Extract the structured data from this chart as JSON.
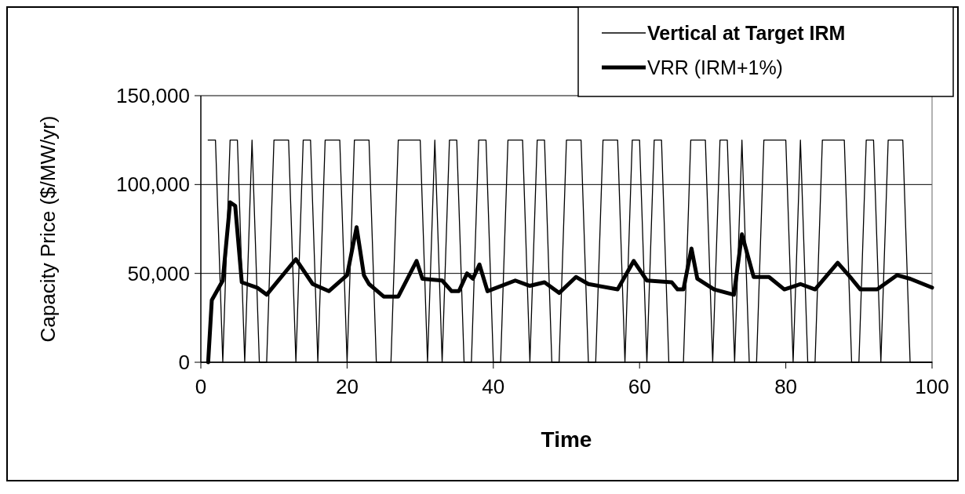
{
  "chart_data": {
    "type": "line",
    "xlabel": "Time",
    "ylabel": "Capacity Price ($/MW/yr)",
    "xlim": [
      0,
      100
    ],
    "xticks": [
      0,
      20,
      40,
      60,
      80,
      100
    ],
    "ylim": [
      0,
      150000
    ],
    "yticks": [
      0,
      {
        "value": 50000,
        "label": "50,000"
      },
      {
        "value": 100000,
        "label": "100,000"
      },
      {
        "value": 150000,
        "label": "150,000"
      }
    ],
    "grid": "y",
    "legend": "top right",
    "marker": "none",
    "line_style": "solid",
    "series": [
      {
        "name": "Vertical at Target IRM",
        "color": "#000000",
        "x": [
          1,
          2,
          3,
          4,
          5,
          6,
          7,
          8,
          9,
          10,
          11,
          12,
          13,
          14,
          15,
          16,
          17,
          18,
          19,
          20,
          21,
          22,
          23,
          24,
          25,
          26,
          27,
          28,
          29,
          30,
          31,
          32,
          33,
          34,
          35,
          36,
          37,
          38,
          39,
          40,
          41,
          42,
          43,
          44,
          45,
          46,
          47,
          48,
          49,
          50,
          51,
          52,
          53,
          54,
          55,
          56,
          57,
          58,
          59,
          60,
          61,
          62,
          63,
          64,
          65,
          66,
          67,
          68,
          69,
          70,
          71,
          72,
          73,
          74,
          75,
          76,
          77,
          78,
          79,
          80,
          81,
          82,
          83,
          84,
          85,
          86,
          87,
          88,
          89,
          90,
          91,
          92,
          93,
          94,
          95,
          96,
          97,
          98,
          99,
          100
        ],
        "values": [
          125000,
          125000,
          0,
          125000,
          125000,
          0,
          125000,
          0,
          0,
          125000,
          125000,
          125000,
          0,
          125000,
          125000,
          0,
          125000,
          125000,
          125000,
          0,
          125000,
          125000,
          125000,
          0,
          0,
          0,
          125000,
          125000,
          125000,
          125000,
          0,
          125000,
          0,
          125000,
          125000,
          0,
          0,
          125000,
          125000,
          0,
          0,
          125000,
          125000,
          125000,
          0,
          125000,
          125000,
          0,
          0,
          125000,
          125000,
          125000,
          0,
          0,
          125000,
          125000,
          125000,
          0,
          125000,
          125000,
          0,
          125000,
          125000,
          0,
          0,
          0,
          125000,
          125000,
          125000,
          0,
          125000,
          125000,
          0,
          125000,
          0,
          0,
          125000,
          125000,
          125000,
          125000,
          0,
          125000,
          0,
          0,
          125000,
          125000,
          125000,
          125000,
          0,
          0,
          125000,
          125000,
          0,
          125000,
          125000,
          125000,
          0,
          0,
          0,
          0
        ]
      },
      {
        "name": "VRR (IRM+1%)",
        "color": "#000000",
        "x": [
          1,
          1.5,
          3,
          4,
          4.7,
          5.6,
          7.7,
          9,
          13,
          15.3,
          17.5,
          20,
          21.3,
          22.3,
          23,
          25,
          27,
          29.5,
          30.3,
          33,
          34.3,
          35.3,
          36.4,
          37.2,
          38.1,
          39.2,
          43,
          45,
          47,
          49,
          51.3,
          53,
          57,
          59.2,
          61,
          64.4,
          65.2,
          66,
          67.1,
          67.9,
          70.2,
          72.9,
          74,
          75.6,
          77.7,
          79.8,
          82,
          84,
          87.1,
          89,
          90.2,
          92.5,
          95.2,
          97,
          100
        ],
        "values": [
          0,
          35000,
          46000,
          90000,
          88000,
          45000,
          42000,
          38000,
          58000,
          44000,
          40000,
          49000,
          76000,
          49000,
          44000,
          37000,
          37000,
          57000,
          47000,
          46000,
          40000,
          40000,
          50000,
          47000,
          55000,
          40000,
          46000,
          43000,
          45000,
          39000,
          48000,
          44000,
          41000,
          57000,
          46000,
          45000,
          41000,
          41000,
          64000,
          47000,
          41000,
          38000,
          72000,
          48000,
          48000,
          41000,
          44000,
          41000,
          56000,
          47000,
          41000,
          41000,
          49000,
          47000,
          42000
        ]
      }
    ]
  }
}
